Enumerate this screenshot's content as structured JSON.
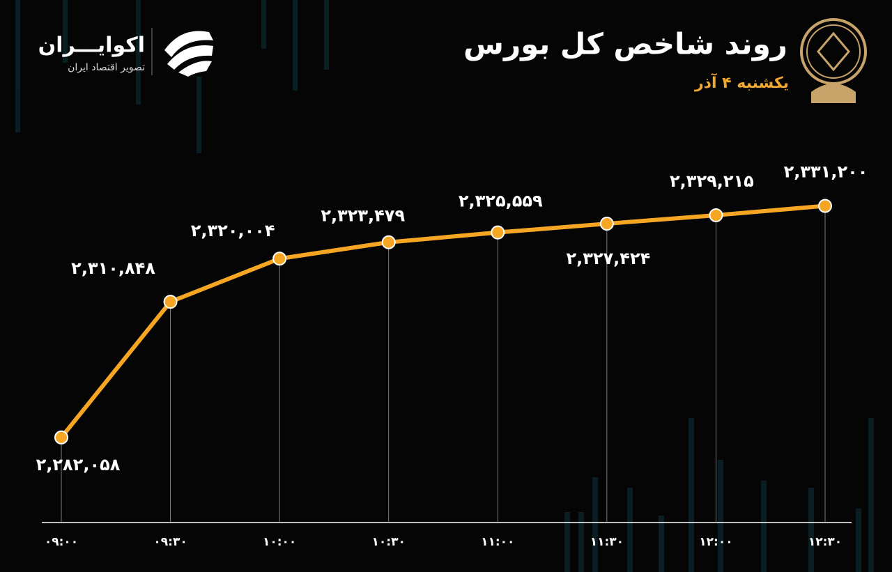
{
  "chart_data": {
    "type": "line",
    "title": "روند شاخص کل بورس",
    "subtitle": "یکشنبه ۴ آذر",
    "categories": [
      "۰۹:۰۰",
      "۰۹:۳۰",
      "۱۰:۰۰",
      "۱۰:۳۰",
      "۱۱:۰۰",
      "۱۱:۳۰",
      "۱۲:۰۰",
      "۱۲:۳۰"
    ],
    "series": [
      {
        "name": "شاخص کل",
        "color": "#f7a623",
        "values": [
          2282058,
          2310848,
          2320004,
          2323479,
          2325559,
          2327424,
          2329215,
          2331200
        ],
        "value_labels": [
          "۲,۲۸۲,۰۵۸",
          "۲,۳۱۰,۸۴۸",
          "۲,۳۲۰,۰۰۴",
          "۲,۳۲۳,۴۷۹",
          "۲,۳۲۵,۵۵۹",
          "۲,۳۲۷,۴۲۴",
          "۲,۳۲۹,۲۱۵",
          "۲,۳۳۱,۲۰۰"
        ]
      }
    ],
    "ylim": [
      2264000,
      2340000
    ]
  },
  "brand": {
    "name": "اکوایـــران",
    "tagline": "تصویر اقتصاد ایران"
  }
}
